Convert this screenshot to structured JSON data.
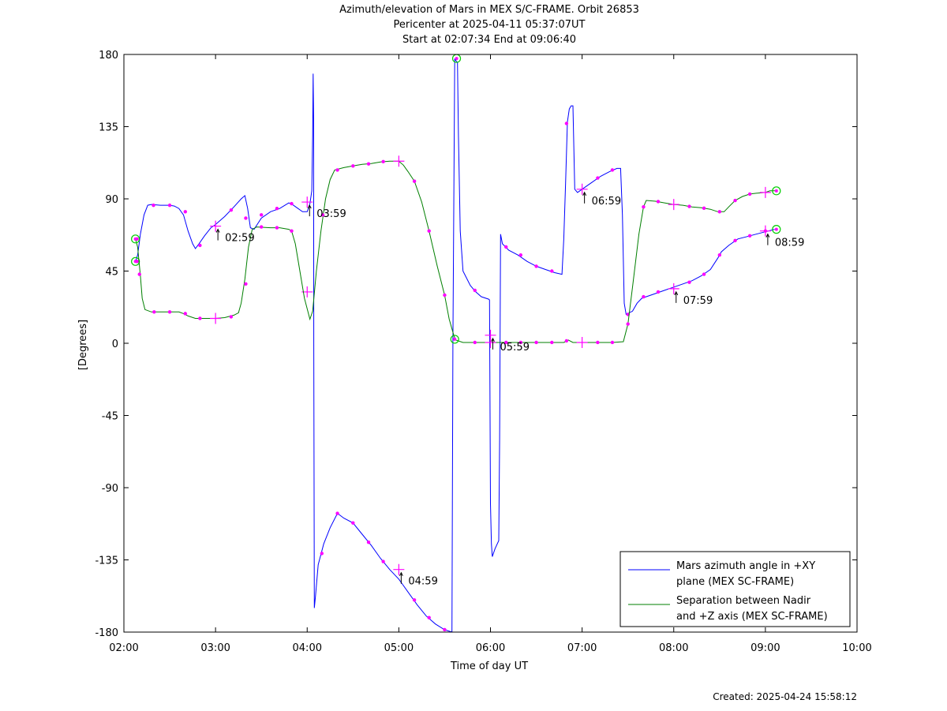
{
  "title_lines": [
    "Azimuth/elevation of Mars in MEX S/C-FRAME.  Orbit 26853",
    "Pericenter at 2025-04-11 05:37:07UT",
    "Start at 02:07:34 End at 09:06:40"
  ],
  "created": "Created: 2025-04-24 15:58:12",
  "chart_data": {
    "type": "line",
    "xlabel": "Time of day UT",
    "ylabel": "[Degrees]",
    "xlim": [
      2.0,
      10.0
    ],
    "ylim": [
      -180,
      180
    ],
    "xticks": [
      2,
      3,
      4,
      5,
      6,
      7,
      8,
      9,
      10
    ],
    "xtick_labels": [
      "02:00",
      "03:00",
      "04:00",
      "05:00",
      "06:00",
      "07:00",
      "08:00",
      "09:00",
      "10:00"
    ],
    "yticks": [
      -180,
      -135,
      -90,
      -45,
      0,
      45,
      90,
      135,
      180
    ],
    "ytick_labels": [
      "-180",
      "-135",
      "-90",
      "-45",
      "0",
      "45",
      "90",
      "135",
      "180"
    ],
    "legend_position": "bottom-right",
    "colors": {
      "azimuth": "#0000ff",
      "separation": "#007f00",
      "markers": "#ff00ff",
      "endpoints": "#00cc00"
    },
    "series": [
      {
        "key": "azimuth",
        "name_lines": [
          "Mars azimuth angle in +XY",
          "plane (MEX SC-FRAME)"
        ],
        "points": [
          [
            2.126,
            51
          ],
          [
            2.15,
            55
          ],
          [
            2.18,
            68
          ],
          [
            2.22,
            80
          ],
          [
            2.26,
            86
          ],
          [
            2.3,
            86.5
          ],
          [
            2.4,
            86
          ],
          [
            2.5,
            86
          ],
          [
            2.55,
            85.5
          ],
          [
            2.6,
            84
          ],
          [
            2.65,
            80
          ],
          [
            2.7,
            70
          ],
          [
            2.75,
            62
          ],
          [
            2.78,
            59
          ],
          [
            2.82,
            62
          ],
          [
            2.88,
            67
          ],
          [
            2.95,
            72
          ],
          [
            3.0,
            74
          ],
          [
            3.1,
            79
          ],
          [
            3.2,
            85
          ],
          [
            3.28,
            90
          ],
          [
            3.32,
            92
          ],
          [
            3.35,
            84
          ],
          [
            3.38,
            72
          ],
          [
            3.42,
            71
          ],
          [
            3.5,
            78
          ],
          [
            3.6,
            82
          ],
          [
            3.7,
            84
          ],
          [
            3.8,
            87.5
          ],
          [
            3.85,
            86
          ],
          [
            3.9,
            84
          ],
          [
            3.95,
            82
          ],
          [
            4.0,
            82
          ],
          [
            4.03,
            87
          ],
          [
            4.05,
            95
          ],
          [
            4.06,
            130
          ],
          [
            4.065,
            168
          ],
          [
            4.07,
            140
          ],
          [
            4.072,
            0
          ],
          [
            4.078,
            -165
          ],
          [
            4.09,
            -158
          ],
          [
            4.12,
            -138
          ],
          [
            4.18,
            -125
          ],
          [
            4.25,
            -115
          ],
          [
            4.33,
            -106
          ],
          [
            4.4,
            -109
          ],
          [
            4.5,
            -112
          ],
          [
            4.6,
            -119
          ],
          [
            4.7,
            -126
          ],
          [
            4.8,
            -134
          ],
          [
            4.9,
            -141
          ],
          [
            5.0,
            -147
          ],
          [
            5.1,
            -155
          ],
          [
            5.2,
            -163
          ],
          [
            5.3,
            -170
          ],
          [
            5.4,
            -175
          ],
          [
            5.5,
            -178.5
          ],
          [
            5.58,
            -180
          ],
          [
            5.59,
            0
          ],
          [
            5.61,
            177
          ],
          [
            5.64,
            175
          ],
          [
            5.65,
            130
          ],
          [
            5.67,
            70
          ],
          [
            5.7,
            45
          ],
          [
            5.78,
            36
          ],
          [
            5.84,
            32
          ],
          [
            5.9,
            29
          ],
          [
            5.98,
            27.5
          ],
          [
            5.99,
            27
          ],
          [
            6.0,
            -100
          ],
          [
            6.01,
            -125
          ],
          [
            6.02,
            -133
          ],
          [
            6.05,
            -128
          ],
          [
            6.09,
            -123
          ],
          [
            6.1,
            -60
          ],
          [
            6.11,
            68
          ],
          [
            6.13,
            62
          ],
          [
            6.2,
            58
          ],
          [
            6.3,
            55
          ],
          [
            6.4,
            51
          ],
          [
            6.5,
            48
          ],
          [
            6.6,
            46
          ],
          [
            6.7,
            44
          ],
          [
            6.78,
            43
          ],
          [
            6.8,
            65
          ],
          [
            6.82,
            100
          ],
          [
            6.84,
            138
          ],
          [
            6.86,
            146
          ],
          [
            6.88,
            148
          ],
          [
            6.9,
            148
          ],
          [
            6.92,
            96
          ],
          [
            6.95,
            94
          ],
          [
            7.0,
            96
          ],
          [
            7.1,
            100
          ],
          [
            7.2,
            104
          ],
          [
            7.3,
            107
          ],
          [
            7.38,
            109
          ],
          [
            7.42,
            109
          ],
          [
            7.44,
            80
          ],
          [
            7.46,
            25
          ],
          [
            7.48,
            18
          ],
          [
            7.55,
            20
          ],
          [
            7.6,
            25
          ],
          [
            7.65,
            28
          ],
          [
            7.7,
            29
          ],
          [
            7.8,
            31
          ],
          [
            7.9,
            33
          ],
          [
            8.0,
            35
          ],
          [
            8.1,
            37
          ],
          [
            8.2,
            39
          ],
          [
            8.3,
            42
          ],
          [
            8.4,
            46
          ],
          [
            8.48,
            53
          ],
          [
            8.52,
            57
          ],
          [
            8.6,
            61
          ],
          [
            8.7,
            65
          ],
          [
            8.8,
            66.5
          ],
          [
            8.9,
            68
          ],
          [
            9.0,
            69.5
          ],
          [
            9.1,
            71
          ]
        ],
        "markers": [
          [
            2.143,
            51
          ],
          [
            2.323,
            86
          ],
          [
            2.5,
            86
          ],
          [
            2.67,
            82
          ],
          [
            2.83,
            61
          ],
          [
            3.17,
            83
          ],
          [
            3.33,
            78
          ],
          [
            3.5,
            80
          ],
          [
            3.67,
            84
          ],
          [
            3.83,
            87
          ],
          [
            4.16,
            -131
          ],
          [
            4.33,
            -106
          ],
          [
            4.5,
            -112
          ],
          [
            4.67,
            -124
          ],
          [
            4.83,
            -136
          ],
          [
            5.17,
            -160
          ],
          [
            5.33,
            -171
          ],
          [
            5.5,
            -178.5
          ],
          [
            5.83,
            33
          ],
          [
            6.17,
            60
          ],
          [
            6.33,
            55
          ],
          [
            6.5,
            48
          ],
          [
            6.67,
            45
          ],
          [
            6.83,
            137
          ],
          [
            7.17,
            103
          ],
          [
            7.33,
            108
          ],
          [
            7.5,
            18
          ],
          [
            7.67,
            29
          ],
          [
            7.83,
            32
          ],
          [
            8.17,
            38
          ],
          [
            8.33,
            43
          ],
          [
            8.5,
            55
          ],
          [
            8.67,
            64
          ],
          [
            8.83,
            67
          ],
          [
            9.0,
            70
          ]
        ],
        "crosses": [
          [
            3.0,
            73
          ],
          [
            4.0,
            32
          ],
          [
            5.0,
            -141
          ],
          [
            6.0,
            5
          ],
          [
            7.0,
            96
          ],
          [
            8.0,
            34
          ],
          [
            9.0,
            70
          ]
        ],
        "circles": [
          [
            2.126,
            51
          ],
          [
            5.63,
            177.5
          ],
          [
            9.12,
            71
          ]
        ]
      },
      {
        "key": "separation",
        "name_lines": [
          "Separation between Nadir",
          "and +Z axis (MEX SC-FRAME)"
        ],
        "points": [
          [
            2.126,
            65
          ],
          [
            2.15,
            60
          ],
          [
            2.18,
            42
          ],
          [
            2.2,
            28
          ],
          [
            2.23,
            21
          ],
          [
            2.3,
            19.5
          ],
          [
            2.5,
            19.5
          ],
          [
            2.6,
            19.5
          ],
          [
            2.65,
            18.5
          ],
          [
            2.7,
            17
          ],
          [
            2.78,
            15.5
          ],
          [
            2.9,
            15.5
          ],
          [
            3.0,
            15.5
          ],
          [
            3.1,
            16
          ],
          [
            3.2,
            17.5
          ],
          [
            3.25,
            19
          ],
          [
            3.28,
            25
          ],
          [
            3.32,
            40
          ],
          [
            3.36,
            60
          ],
          [
            3.4,
            71
          ],
          [
            3.45,
            72.5
          ],
          [
            3.6,
            72
          ],
          [
            3.7,
            72
          ],
          [
            3.8,
            71
          ],
          [
            3.83,
            70
          ],
          [
            3.87,
            62
          ],
          [
            3.92,
            45
          ],
          [
            3.97,
            28
          ],
          [
            4.03,
            15
          ],
          [
            4.06,
            20
          ],
          [
            4.1,
            45
          ],
          [
            4.15,
            70
          ],
          [
            4.2,
            90
          ],
          [
            4.25,
            102
          ],
          [
            4.3,
            108
          ],
          [
            4.4,
            109.5
          ],
          [
            4.5,
            110.5
          ],
          [
            4.6,
            111.5
          ],
          [
            4.7,
            112
          ],
          [
            4.8,
            113
          ],
          [
            4.9,
            113.5
          ],
          [
            5.0,
            113.5
          ],
          [
            5.05,
            111
          ],
          [
            5.1,
            107
          ],
          [
            5.17,
            101
          ],
          [
            5.25,
            88
          ],
          [
            5.33,
            70
          ],
          [
            5.42,
            48
          ],
          [
            5.5,
            30
          ],
          [
            5.55,
            15
          ],
          [
            5.6,
            5
          ],
          [
            5.62,
            2
          ],
          [
            5.7,
            0.5
          ],
          [
            5.83,
            0.5
          ],
          [
            6.0,
            0.5
          ],
          [
            6.17,
            0.5
          ],
          [
            6.33,
            0.5
          ],
          [
            6.5,
            0.5
          ],
          [
            6.67,
            0.5
          ],
          [
            6.8,
            0.5
          ],
          [
            6.85,
            2
          ],
          [
            6.9,
            0.5
          ],
          [
            7.0,
            0.5
          ],
          [
            7.17,
            0.5
          ],
          [
            7.33,
            0.5
          ],
          [
            7.45,
            1
          ],
          [
            7.5,
            12
          ],
          [
            7.55,
            35
          ],
          [
            7.62,
            68
          ],
          [
            7.67,
            85
          ],
          [
            7.7,
            89
          ],
          [
            7.8,
            88.5
          ],
          [
            7.9,
            87.5
          ],
          [
            8.0,
            86.5
          ],
          [
            8.1,
            86
          ],
          [
            8.2,
            85
          ],
          [
            8.3,
            84.5
          ],
          [
            8.4,
            83.5
          ],
          [
            8.48,
            82
          ],
          [
            8.55,
            82
          ],
          [
            8.6,
            85
          ],
          [
            8.67,
            89
          ],
          [
            8.75,
            91.5
          ],
          [
            8.83,
            93
          ],
          [
            8.9,
            93.5
          ],
          [
            9.0,
            94
          ],
          [
            9.05,
            95
          ],
          [
            9.12,
            95
          ]
        ],
        "markers": [
          [
            2.143,
            65
          ],
          [
            2.17,
            43
          ],
          [
            2.33,
            19.5
          ],
          [
            2.5,
            19.5
          ],
          [
            2.67,
            18.5
          ],
          [
            2.83,
            15.5
          ],
          [
            3.17,
            16.5
          ],
          [
            3.33,
            37
          ],
          [
            3.5,
            72.5
          ],
          [
            3.67,
            72
          ],
          [
            3.83,
            70
          ],
          [
            4.17,
            80
          ],
          [
            4.33,
            108
          ],
          [
            4.5,
            110.5
          ],
          [
            4.67,
            111.8
          ],
          [
            4.83,
            113.2
          ],
          [
            5.17,
            101
          ],
          [
            5.33,
            70
          ],
          [
            5.5,
            30
          ],
          [
            5.83,
            0.5
          ],
          [
            6.17,
            0.5
          ],
          [
            6.33,
            0.5
          ],
          [
            6.5,
            0.5
          ],
          [
            6.67,
            0.5
          ],
          [
            6.83,
            1.5
          ],
          [
            7.17,
            0.5
          ],
          [
            7.33,
            0.5
          ],
          [
            7.5,
            12
          ],
          [
            7.67,
            85
          ],
          [
            7.83,
            88.3
          ],
          [
            8.17,
            85.3
          ],
          [
            8.33,
            84.2
          ],
          [
            8.5,
            82
          ],
          [
            8.67,
            89
          ],
          [
            8.83,
            93
          ]
        ],
        "crosses": [
          [
            3.0,
            15.5
          ],
          [
            4.0,
            88
          ],
          [
            5.0,
            113.5
          ],
          [
            6.0,
            0.5
          ],
          [
            7.0,
            0.5
          ],
          [
            8.0,
            86.5
          ],
          [
            9.0,
            94
          ]
        ],
        "circles": [
          [
            2.126,
            65
          ],
          [
            5.61,
            2.5
          ],
          [
            9.12,
            95
          ]
        ]
      }
    ],
    "annotations": [
      {
        "text": "02:59",
        "x": 3.0,
        "y": 73,
        "series": "azimuth"
      },
      {
        "text": "03:59",
        "x": 4.0,
        "y": 88,
        "series": "separation"
      },
      {
        "text": "04:59",
        "x": 5.0,
        "y": -141,
        "series": "azimuth"
      },
      {
        "text": "05:59",
        "x": 6.0,
        "y": 5,
        "series": "azimuth"
      },
      {
        "text": "06:59",
        "x": 7.0,
        "y": 96,
        "series": "azimuth"
      },
      {
        "text": "07:59",
        "x": 8.0,
        "y": 34,
        "series": "azimuth"
      },
      {
        "text": "08:59",
        "x": 9.0,
        "y": 70,
        "series": "azimuth"
      }
    ]
  }
}
